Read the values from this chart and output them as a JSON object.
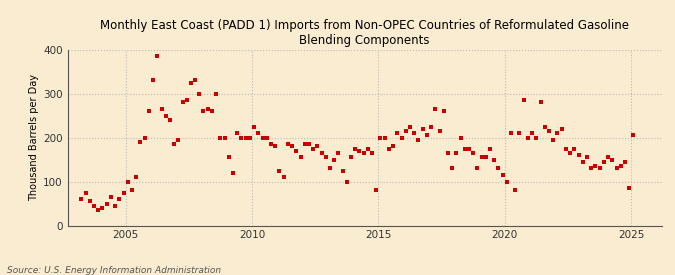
{
  "title": "Monthly East Coast (PADD 1) Imports from Non-OPEC Countries of Reformulated Gasoline\nBlending Components",
  "ylabel": "Thousand Barrels per Day",
  "source": "Source: U.S. Energy Information Administration",
  "background_color": "#faecd0",
  "marker_color": "#cc0000",
  "grid_color": "#bbbbbb",
  "ylim": [
    0,
    400
  ],
  "yticks": [
    0,
    100,
    200,
    300,
    400
  ],
  "xlim_start": 2002.7,
  "xlim_end": 2026.2,
  "xticks": [
    2005,
    2010,
    2015,
    2020,
    2025
  ],
  "title_fontsize": 8.5,
  "tick_fontsize": 7.5,
  "ylabel_fontsize": 7,
  "source_fontsize": 6.5,
  "data": [
    [
      2003.25,
      60
    ],
    [
      2003.42,
      75
    ],
    [
      2003.58,
      55
    ],
    [
      2003.75,
      45
    ],
    [
      2003.92,
      35
    ],
    [
      2004.08,
      40
    ],
    [
      2004.25,
      50
    ],
    [
      2004.42,
      65
    ],
    [
      2004.58,
      45
    ],
    [
      2004.75,
      60
    ],
    [
      2004.92,
      75
    ],
    [
      2005.08,
      100
    ],
    [
      2005.25,
      80
    ],
    [
      2005.42,
      110
    ],
    [
      2005.58,
      190
    ],
    [
      2005.75,
      200
    ],
    [
      2005.92,
      260
    ],
    [
      2006.08,
      330
    ],
    [
      2006.25,
      385
    ],
    [
      2006.42,
      265
    ],
    [
      2006.58,
      250
    ],
    [
      2006.75,
      240
    ],
    [
      2006.92,
      185
    ],
    [
      2007.08,
      195
    ],
    [
      2007.25,
      280
    ],
    [
      2007.42,
      285
    ],
    [
      2007.58,
      325
    ],
    [
      2007.75,
      330
    ],
    [
      2007.92,
      300
    ],
    [
      2008.08,
      260
    ],
    [
      2008.25,
      265
    ],
    [
      2008.42,
      260
    ],
    [
      2008.58,
      300
    ],
    [
      2008.75,
      200
    ],
    [
      2008.92,
      200
    ],
    [
      2009.08,
      155
    ],
    [
      2009.25,
      120
    ],
    [
      2009.42,
      210
    ],
    [
      2009.58,
      200
    ],
    [
      2009.75,
      200
    ],
    [
      2009.92,
      200
    ],
    [
      2010.08,
      225
    ],
    [
      2010.25,
      210
    ],
    [
      2010.42,
      200
    ],
    [
      2010.58,
      200
    ],
    [
      2010.75,
      185
    ],
    [
      2010.92,
      180
    ],
    [
      2011.08,
      125
    ],
    [
      2011.25,
      110
    ],
    [
      2011.42,
      185
    ],
    [
      2011.58,
      180
    ],
    [
      2011.75,
      170
    ],
    [
      2011.92,
      155
    ],
    [
      2012.08,
      185
    ],
    [
      2012.25,
      185
    ],
    [
      2012.42,
      175
    ],
    [
      2012.58,
      180
    ],
    [
      2012.75,
      165
    ],
    [
      2012.92,
      155
    ],
    [
      2013.08,
      130
    ],
    [
      2013.25,
      150
    ],
    [
      2013.42,
      165
    ],
    [
      2013.58,
      125
    ],
    [
      2013.75,
      100
    ],
    [
      2013.92,
      155
    ],
    [
      2014.08,
      175
    ],
    [
      2014.25,
      170
    ],
    [
      2014.42,
      165
    ],
    [
      2014.58,
      175
    ],
    [
      2014.75,
      165
    ],
    [
      2014.92,
      80
    ],
    [
      2015.08,
      200
    ],
    [
      2015.25,
      200
    ],
    [
      2015.42,
      175
    ],
    [
      2015.58,
      180
    ],
    [
      2015.75,
      210
    ],
    [
      2015.92,
      200
    ],
    [
      2016.08,
      215
    ],
    [
      2016.25,
      225
    ],
    [
      2016.42,
      210
    ],
    [
      2016.58,
      195
    ],
    [
      2016.75,
      220
    ],
    [
      2016.92,
      205
    ],
    [
      2017.08,
      225
    ],
    [
      2017.25,
      265
    ],
    [
      2017.42,
      215
    ],
    [
      2017.58,
      260
    ],
    [
      2017.75,
      165
    ],
    [
      2017.92,
      130
    ],
    [
      2018.08,
      165
    ],
    [
      2018.25,
      200
    ],
    [
      2018.42,
      175
    ],
    [
      2018.58,
      175
    ],
    [
      2018.75,
      165
    ],
    [
      2018.92,
      130
    ],
    [
      2019.08,
      155
    ],
    [
      2019.25,
      155
    ],
    [
      2019.42,
      175
    ],
    [
      2019.58,
      150
    ],
    [
      2019.75,
      130
    ],
    [
      2019.92,
      115
    ],
    [
      2020.08,
      100
    ],
    [
      2020.25,
      210
    ],
    [
      2020.42,
      80
    ],
    [
      2020.58,
      210
    ],
    [
      2020.75,
      285
    ],
    [
      2020.92,
      200
    ],
    [
      2021.08,
      210
    ],
    [
      2021.25,
      200
    ],
    [
      2021.42,
      280
    ],
    [
      2021.58,
      225
    ],
    [
      2021.75,
      215
    ],
    [
      2021.92,
      195
    ],
    [
      2022.08,
      210
    ],
    [
      2022.25,
      220
    ],
    [
      2022.42,
      175
    ],
    [
      2022.58,
      165
    ],
    [
      2022.75,
      175
    ],
    [
      2022.92,
      160
    ],
    [
      2023.08,
      145
    ],
    [
      2023.25,
      155
    ],
    [
      2023.42,
      130
    ],
    [
      2023.58,
      135
    ],
    [
      2023.75,
      130
    ],
    [
      2023.92,
      145
    ],
    [
      2024.08,
      155
    ],
    [
      2024.25,
      150
    ],
    [
      2024.42,
      130
    ],
    [
      2024.58,
      135
    ],
    [
      2024.75,
      145
    ],
    [
      2024.92,
      85
    ],
    [
      2025.08,
      205
    ]
  ]
}
